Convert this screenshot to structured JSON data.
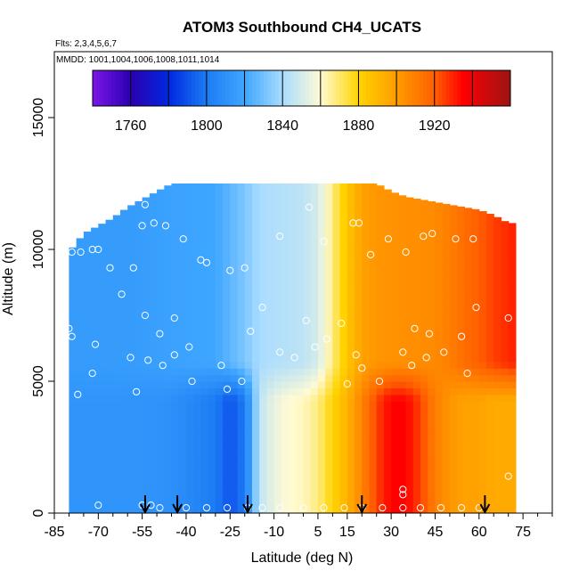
{
  "chart_data": {
    "type": "heatmap",
    "title": "ATOM3 Southbound CH4_UCATS",
    "notes": [
      "Flts: 2,3,4,5,6,7",
      "MMDD: 1001,1004,1006,1008,1011,1014"
    ],
    "xlabel": "Latitude (deg N)",
    "ylabel": "Altitude (m)",
    "xlim": [
      -85,
      85
    ],
    "ylim": [
      0,
      17500
    ],
    "x_ticks": [
      -85,
      -70,
      -55,
      -40,
      -25,
      -10,
      5,
      15,
      30,
      45,
      60,
      75
    ],
    "x_tick_labels": [
      "-85",
      "-70",
      "-55",
      "-40",
      "-25",
      "-10",
      "5",
      "15",
      "30",
      "45",
      "60",
      "75"
    ],
    "y_ticks": [
      0,
      5000,
      10000,
      15000
    ],
    "y_tick_labels": [
      "0",
      "5000",
      "10000",
      "15000"
    ],
    "colorbar": {
      "min": 1740,
      "max": 1960,
      "ticks": [
        1760,
        1800,
        1840,
        1880,
        1920
      ],
      "tick_labels": [
        "1760",
        "1800",
        "1840",
        "1880",
        "1920"
      ],
      "color_stops": [
        {
          "v": 1740,
          "c": "#7b16e8"
        },
        {
          "v": 1760,
          "c": "#2a00b0"
        },
        {
          "v": 1780,
          "c": "#0028e0"
        },
        {
          "v": 1800,
          "c": "#1c7cf4"
        },
        {
          "v": 1820,
          "c": "#3ea6ff"
        },
        {
          "v": 1840,
          "c": "#a9dcff"
        },
        {
          "v": 1860,
          "c": "#fffbd4"
        },
        {
          "v": 1880,
          "c": "#ffd400"
        },
        {
          "v": 1900,
          "c": "#ff9c00"
        },
        {
          "v": 1920,
          "c": "#ff6000"
        },
        {
          "v": 1935,
          "c": "#ff0000"
        },
        {
          "v": 1960,
          "c": "#9c1414"
        }
      ]
    },
    "value_profiles": {
      "lat": [
        -85,
        -75,
        -60,
        -45,
        -30,
        -25,
        -20,
        -15,
        -10,
        -5,
        0,
        5,
        10,
        15,
        20,
        25,
        30,
        35,
        40,
        45,
        50,
        55,
        60,
        65,
        72
      ],
      "low_0_5000m": [
        1812,
        1812,
        1812,
        1810,
        1800,
        1790,
        1800,
        1845,
        1855,
        1860,
        1862,
        1868,
        1880,
        1892,
        1908,
        1925,
        1935,
        1935,
        1925,
        1910,
        1902,
        1898,
        1898,
        1895,
        1895
      ],
      "high_5000_12500m": [
        1815,
        1815,
        1815,
        1818,
        1820,
        1826,
        1832,
        1840,
        1842,
        1843,
        1845,
        1850,
        1868,
        1885,
        1898,
        1902,
        1903,
        1904,
        1905,
        1906,
        1910,
        1916,
        1920,
        1925,
        1930
      ]
    },
    "coverage_top_altitude": {
      "lat": [
        -80,
        -75,
        -70,
        -65,
        -60,
        -55,
        -50,
        -45,
        -40,
        -35,
        -30,
        25,
        30,
        35,
        40,
        45,
        50,
        55,
        60,
        65,
        70
      ],
      "top": [
        9900,
        10600,
        10900,
        11200,
        11600,
        11900,
        12200,
        12500,
        12500,
        12500,
        12500,
        12500,
        12200,
        12000,
        11900,
        11800,
        11700,
        11600,
        11500,
        11300,
        11000
      ]
    },
    "arrows_lat": [
      -54,
      -43,
      -19,
      20,
      62
    ],
    "sample_points": [
      {
        "lat": -79,
        "alt": 9900
      },
      {
        "lat": -76,
        "alt": 9900
      },
      {
        "lat": -72,
        "alt": 10000
      },
      {
        "lat": -70,
        "alt": 10000
      },
      {
        "lat": -66,
        "alt": 9300
      },
      {
        "lat": -58,
        "alt": 9300
      },
      {
        "lat": -62,
        "alt": 8300
      },
      {
        "lat": -55,
        "alt": 10900
      },
      {
        "lat": -51,
        "alt": 11000
      },
      {
        "lat": -54,
        "alt": 11700
      },
      {
        "lat": -47,
        "alt": 10900
      },
      {
        "lat": -41,
        "alt": 10400
      },
      {
        "lat": -35,
        "alt": 9600
      },
      {
        "lat": -33,
        "alt": 9500
      },
      {
        "lat": -25,
        "alt": 9200
      },
      {
        "lat": -20,
        "alt": 9300
      },
      {
        "lat": -14,
        "alt": 7800
      },
      {
        "lat": 2,
        "alt": 11600
      },
      {
        "lat": 17,
        "alt": 11000
      },
      {
        "lat": 19,
        "alt": 11000
      },
      {
        "lat": 7,
        "alt": 10300
      },
      {
        "lat": -8,
        "alt": 10500
      },
      {
        "lat": 29,
        "alt": 10400
      },
      {
        "lat": 41,
        "alt": 10500
      },
      {
        "lat": 44,
        "alt": 10600
      },
      {
        "lat": 52,
        "alt": 10400
      },
      {
        "lat": 58,
        "alt": 10400
      },
      {
        "lat": 35,
        "alt": 9900
      },
      {
        "lat": 23,
        "alt": 9800
      },
      {
        "lat": -80,
        "alt": 7000
      },
      {
        "lat": -79,
        "alt": 6700
      },
      {
        "lat": -71,
        "alt": 6400
      },
      {
        "lat": -54,
        "alt": 7500
      },
      {
        "lat": -44,
        "alt": 7400
      },
      {
        "lat": -49,
        "alt": 6800
      },
      {
        "lat": -39,
        "alt": 6300
      },
      {
        "lat": -44,
        "alt": 6000
      },
      {
        "lat": -59,
        "alt": 5900
      },
      {
        "lat": -53,
        "alt": 5800
      },
      {
        "lat": -48,
        "alt": 5600
      },
      {
        "lat": -28,
        "alt": 5600
      },
      {
        "lat": -38,
        "alt": 5000
      },
      {
        "lat": -26,
        "alt": 4700
      },
      {
        "lat": -21,
        "alt": 5000
      },
      {
        "lat": -8,
        "alt": 6100
      },
      {
        "lat": -3,
        "alt": 5900
      },
      {
        "lat": 4,
        "alt": 6300
      },
      {
        "lat": 8,
        "alt": 6600
      },
      {
        "lat": -18,
        "alt": 6900
      },
      {
        "lat": 1,
        "alt": 7300
      },
      {
        "lat": 13,
        "alt": 7200
      },
      {
        "lat": 18,
        "alt": 6000
      },
      {
        "lat": 20,
        "alt": 5500
      },
      {
        "lat": 26,
        "alt": 5000
      },
      {
        "lat": 15,
        "alt": 4900
      },
      {
        "lat": 34,
        "alt": 6100
      },
      {
        "lat": 37,
        "alt": 5600
      },
      {
        "lat": 42,
        "alt": 5900
      },
      {
        "lat": 43,
        "alt": 6800
      },
      {
        "lat": 38,
        "alt": 7000
      },
      {
        "lat": 48,
        "alt": 6100
      },
      {
        "lat": 54,
        "alt": 6700
      },
      {
        "lat": 56,
        "alt": 5300
      },
      {
        "lat": 59,
        "alt": 7800
      },
      {
        "lat": 70,
        "alt": 7400
      },
      {
        "lat": -72,
        "alt": 5300
      },
      {
        "lat": -77,
        "alt": 4500
      },
      {
        "lat": -57,
        "alt": 4600
      },
      {
        "lat": 70,
        "alt": 1400
      },
      {
        "lat": -70,
        "alt": 300
      },
      {
        "lat": -55,
        "alt": 300
      },
      {
        "lat": -52,
        "alt": 300
      },
      {
        "lat": -49,
        "alt": 200
      },
      {
        "lat": -40,
        "alt": 200
      },
      {
        "lat": -33,
        "alt": 200
      },
      {
        "lat": -26,
        "alt": 200
      },
      {
        "lat": -19,
        "alt": 200
      },
      {
        "lat": -14,
        "alt": 200
      },
      {
        "lat": -8,
        "alt": 200
      },
      {
        "lat": 0,
        "alt": 200
      },
      {
        "lat": 7,
        "alt": 200
      },
      {
        "lat": 14,
        "alt": 200
      },
      {
        "lat": 20,
        "alt": 200
      },
      {
        "lat": 27,
        "alt": 200
      },
      {
        "lat": 34,
        "alt": 200
      },
      {
        "lat": 34,
        "alt": 700
      },
      {
        "lat": 34,
        "alt": 900
      },
      {
        "lat": 40,
        "alt": 200
      },
      {
        "lat": 47,
        "alt": 200
      },
      {
        "lat": 54,
        "alt": 200
      },
      {
        "lat": 60,
        "alt": 200
      }
    ]
  }
}
